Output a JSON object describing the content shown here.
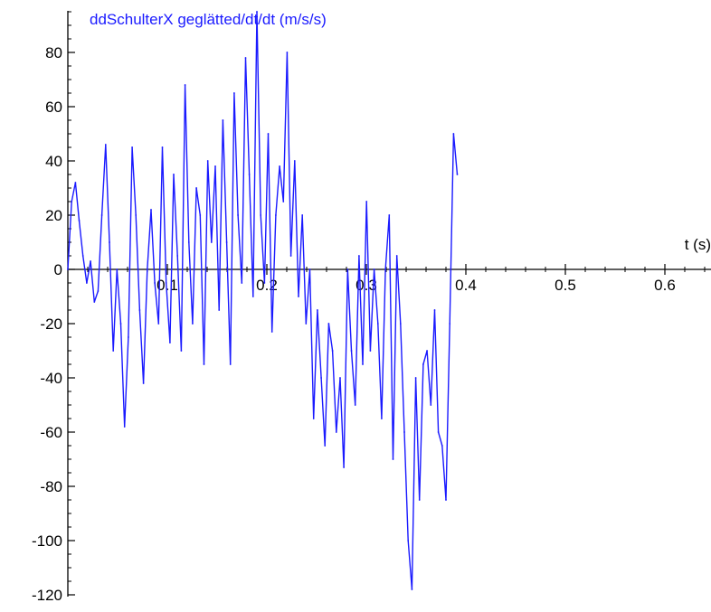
{
  "chart_data": {
    "type": "line",
    "title": "",
    "xlabel": "t (s)",
    "ylabel": "",
    "xlim": [
      0,
      0.65
    ],
    "ylim": [
      -120,
      95
    ],
    "xticks": [
      0.1,
      0.2,
      0.3,
      0.4,
      0.5,
      0.6
    ],
    "xtick_labels": [
      "0.1",
      "0.2",
      "0.3",
      "0.4",
      "0.5",
      "0.6"
    ],
    "yticks": [
      -120,
      -100,
      -80,
      -60,
      -40,
      -20,
      0,
      20,
      40,
      60,
      80
    ],
    "ytick_labels": [
      "-120",
      "-100",
      "-80",
      "-60",
      "-40",
      "-20",
      "0",
      "20",
      "40",
      "60",
      "80"
    ],
    "grid": false,
    "colors": {
      "series": "#1a1aff",
      "axis": "#000000"
    },
    "series": [
      {
        "name": "ddSchulterX geglätted/dt/dt (m/s/s)",
        "x": [
          0,
          0.0038,
          0.0076,
          0.0114,
          0.0152,
          0.019,
          0.0228,
          0.0266,
          0.0304,
          0.0342,
          0.038,
          0.0418,
          0.0456,
          0.0494,
          0.0532,
          0.057,
          0.0608,
          0.0646,
          0.0684,
          0.0722,
          0.076,
          0.0798,
          0.0836,
          0.0874,
          0.0912,
          0.095,
          0.0988,
          0.1026,
          0.1064,
          0.1102,
          0.114,
          0.1178,
          0.1216,
          0.1254,
          0.1292,
          0.133,
          0.1368,
          0.1406,
          0.1444,
          0.1482,
          0.152,
          0.1558,
          0.1596,
          0.1634,
          0.1672,
          0.171,
          0.1748,
          0.1786,
          0.1824,
          0.1862,
          0.19,
          0.1938,
          0.1976,
          0.2014,
          0.2052,
          0.209,
          0.2128,
          0.2166,
          0.2204,
          0.2242,
          0.228,
          0.2318,
          0.2356,
          0.2394,
          0.2432,
          0.247,
          0.2508,
          0.2546,
          0.2584,
          0.2622,
          0.266,
          0.2698,
          0.2736,
          0.2774,
          0.2812,
          0.285,
          0.2888,
          0.2926,
          0.2964,
          0.3002,
          0.304,
          0.3078,
          0.3116,
          0.3154,
          0.3192,
          0.323,
          0.3268,
          0.3306,
          0.3344,
          0.3382,
          0.342,
          0.3458,
          0.3496,
          0.3534,
          0.3572,
          0.361,
          0.3648,
          0.3686,
          0.3724,
          0.3762,
          0.38,
          0.3838,
          0.3876,
          0.3914
        ],
        "y": [
          0,
          25,
          32,
          18,
          5,
          -5,
          3,
          -12,
          -8,
          20,
          46,
          10,
          -30,
          0,
          -20,
          -58,
          -25,
          45,
          20,
          -15,
          -42,
          0,
          22,
          -5,
          -20,
          45,
          -5,
          -27,
          35,
          5,
          -30,
          68,
          10,
          -20,
          30,
          20,
          -35,
          40,
          10,
          38,
          -15,
          55,
          10,
          -35,
          65,
          20,
          -5,
          78,
          35,
          -10,
          95,
          20,
          -5,
          50,
          -23,
          20,
          38,
          25,
          80,
          5,
          40,
          -10,
          20,
          -20,
          0,
          -55,
          -15,
          -40,
          -65,
          -20,
          -30,
          -60,
          -40,
          -73,
          0,
          -30,
          -50,
          5,
          -35,
          25,
          -30,
          0,
          -20,
          -55,
          0,
          20,
          -70,
          5,
          -20,
          -60,
          -100,
          -118,
          -40,
          -85,
          -35,
          -30,
          -50,
          -15,
          -60,
          -65,
          -85,
          -20,
          50,
          35
        ]
      }
    ]
  }
}
